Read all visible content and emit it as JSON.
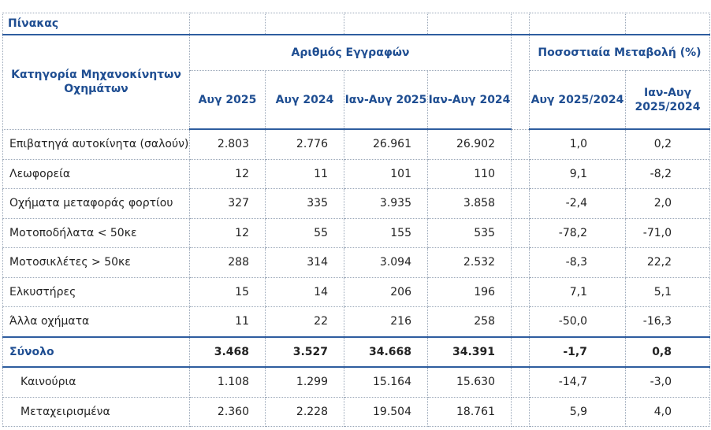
{
  "title": "Πίνακας",
  "header": {
    "category": "Κατηγορία Μηχανοκίνητων Οχημάτων",
    "registrations": "Αριθμός Εγγραφών",
    "change": "Ποσοστιαία Μεταβολή (%)",
    "col1": "Αυγ 2025",
    "col2": "Αυγ 2024",
    "col3": "Ιαν-Αυγ 2025",
    "col4": "Ιαν-Αυγ 2024",
    "col5": "Αυγ 2025/2024",
    "col6": "Ιαν-Αυγ 2025/2024"
  },
  "rows": [
    {
      "label": "Επιβατηγά αυτοκίνητα (σαλούν)",
      "v1": "2.803",
      "v2": "2.776",
      "v3": "26.961",
      "v4": "26.902",
      "p1": "1,0",
      "p2": "0,2"
    },
    {
      "label": "Λεωφορεία",
      "v1": "12",
      "v2": "11",
      "v3": "101",
      "v4": "110",
      "p1": "9,1",
      "p2": "-8,2"
    },
    {
      "label": "Οχήματα μεταφοράς φορτίου",
      "v1": "327",
      "v2": "335",
      "v3": "3.935",
      "v4": "3.858",
      "p1": "-2,4",
      "p2": "2,0"
    },
    {
      "label": "Μοτοποδήλατα < 50κε",
      "v1": "12",
      "v2": "55",
      "v3": "155",
      "v4": "535",
      "p1": "-78,2",
      "p2": "-71,0"
    },
    {
      "label": "Μοτοσικλέτες > 50κε",
      "v1": "288",
      "v2": "314",
      "v3": "3.094",
      "v4": "2.532",
      "p1": "-8,3",
      "p2": "22,2"
    },
    {
      "label": "Ελκυστήρες",
      "v1": "15",
      "v2": "14",
      "v3": "206",
      "v4": "196",
      "p1": "7,1",
      "p2": "5,1"
    },
    {
      "label": "Άλλα οχήματα",
      "v1": "11",
      "v2": "22",
      "v3": "216",
      "v4": "258",
      "p1": "-50,0",
      "p2": "-16,3"
    }
  ],
  "total": {
    "label": "Σύνολο",
    "v1": "3.468",
    "v2": "3.527",
    "v3": "34.668",
    "v4": "34.391",
    "p1": "-1,7",
    "p2": "0,8"
  },
  "sub_rows": [
    {
      "label": "Καινούρια",
      "v1": "1.108",
      "v2": "1.299",
      "v3": "15.164",
      "v4": "15.630",
      "p1": "-14,7",
      "p2": "-3,0"
    },
    {
      "label": "Μεταχειρισμένα",
      "v1": "2.360",
      "v2": "2.228",
      "v3": "19.504",
      "v4": "18.761",
      "p1": "5,9",
      "p2": "4,0"
    }
  ]
}
